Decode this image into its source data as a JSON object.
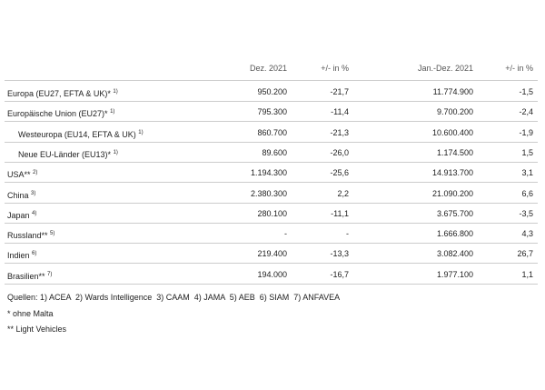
{
  "table": {
    "header": [
      "Dez. 2021",
      "+/- in %",
      "Jan.-Dez. 2021",
      "+/- in %"
    ],
    "rows": [
      {
        "label": "Europa (EU27, EFTA & UK)*",
        "note": "1)",
        "cells": [
          "950.200",
          "-21,7",
          "11.774.900",
          "-1,5"
        ]
      },
      {
        "label": "Europäische Union (EU27)*",
        "note": "1)",
        "cells": [
          "795.300",
          "-11,4",
          "9.700.200",
          "-2,4"
        ]
      },
      {
        "label": "Westeuropa (EU14, EFTA & UK)",
        "note": "1)",
        "cells": [
          "860.700",
          "-21,3",
          "10.600.400",
          "-1,9"
        ]
      },
      {
        "label": "Neue EU-Länder (EU13)*",
        "note": "1)",
        "cells": [
          "89.600",
          "-26,0",
          "1.174.500",
          "1,5"
        ]
      },
      {
        "label": "USA**",
        "note": "2)",
        "cells": [
          "1.194.300",
          "-25,6",
          "14.913.700",
          "3,1"
        ]
      },
      {
        "label": "China",
        "note": "3)",
        "cells": [
          "2.380.300",
          "2,2",
          "21.090.200",
          "6,6"
        ]
      },
      {
        "label": "Japan",
        "note": "4)",
        "cells": [
          "280.100",
          "-11,1",
          "3.675.700",
          "-3,5"
        ]
      },
      {
        "label": "Russland**",
        "note": "5)",
        "cells": [
          "-",
          "-",
          "1.666.800",
          "4,3"
        ]
      },
      {
        "label": "Indien",
        "note": "6)",
        "cells": [
          "219.400",
          "-13,3",
          "3.082.400",
          "26,7"
        ]
      },
      {
        "label": "Brasilien**",
        "note": "7)",
        "cells": [
          "194.000",
          "-16,7",
          "1.977.100",
          "1,1"
        ]
      }
    ]
  },
  "footer": [
    "Quellen: 1) ACEA  2) Wards Intelligence  3) CAAM  4) JAMA  5) AEB  6) SIAM  7) ANFAVEA",
    "* ohne Malta",
    "** Light Vehicles"
  ]
}
